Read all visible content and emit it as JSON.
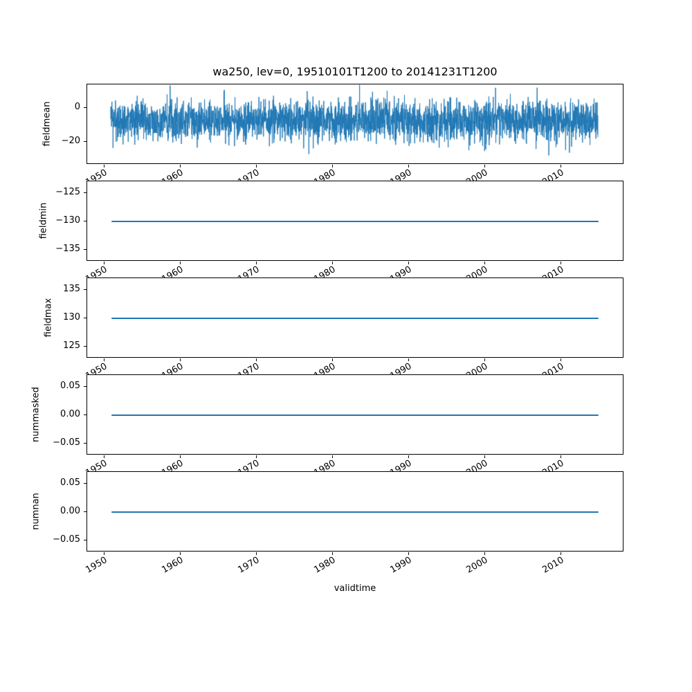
{
  "figure": {
    "title": "wa250, lev=0, 19510101T1200 to 20141231T1200",
    "xlabel": "validtime",
    "background": "#ffffff",
    "line_color": "#1f77b4",
    "axis_color": "#000000"
  },
  "xticks": {
    "years": [
      1950,
      1960,
      1970,
      1980,
      1990,
      2000,
      2010
    ],
    "labels": [
      "1950",
      "1960",
      "1970",
      "1980",
      "1990",
      "2000",
      "2010"
    ],
    "rotation_deg": 30
  },
  "x_domain": {
    "start": "19510101T1200",
    "end": "20141231T1200",
    "start_year": 1951.0,
    "end_year": 2015.0,
    "xlim_years": [
      1947.8,
      2018.2
    ]
  },
  "chart_data": [
    {
      "type": "line",
      "name": "fieldmean",
      "ylabel": "fieldmean",
      "ytick_labels": [
        "0",
        "−20"
      ],
      "ytick_values": [
        0,
        -20
      ],
      "ylim": [
        13.9,
        -33.5
      ],
      "series": {
        "kind": "noisy",
        "description": "dense noisy daily timeseries 1951-2015",
        "mean": -8,
        "sd": 6,
        "min": -30,
        "max": 13,
        "n": 3200,
        "seed": 42,
        "clip": [
          -30.5,
          13.2
        ]
      },
      "color": "#1f77b4"
    },
    {
      "type": "line",
      "name": "fieldmin",
      "ylabel": "fieldmin",
      "ytick_labels": [
        "−125",
        "−130",
        "−135"
      ],
      "ytick_values": [
        -125,
        -130,
        -135
      ],
      "ylim": [
        -122.93,
        -137.07
      ],
      "series": {
        "kind": "constant",
        "value": -130
      },
      "color": "#1f77b4"
    },
    {
      "type": "line",
      "name": "fieldmax",
      "ylabel": "fieldmax",
      "ytick_labels": [
        "135",
        "130",
        "125"
      ],
      "ytick_values": [
        135,
        130,
        125
      ],
      "ylim": [
        137.07,
        122.93
      ],
      "series": {
        "kind": "constant",
        "value": 130
      },
      "color": "#1f77b4"
    },
    {
      "type": "line",
      "name": "nummasked",
      "ylabel": "nummasked",
      "ytick_labels": [
        "0.05",
        "0.00",
        "−0.05"
      ],
      "ytick_values": [
        0.05,
        0.0,
        -0.05
      ],
      "ylim": [
        0.0707,
        -0.0707
      ],
      "series": {
        "kind": "constant",
        "value": 0.0
      },
      "color": "#1f77b4"
    },
    {
      "type": "line",
      "name": "numnan",
      "ylabel": "numnan",
      "ytick_labels": [
        "0.05",
        "0.00",
        "−0.05"
      ],
      "ytick_values": [
        0.05,
        0.0,
        -0.05
      ],
      "ylim": [
        0.0707,
        -0.0707
      ],
      "series": {
        "kind": "constant",
        "value": 0.0
      },
      "color": "#1f77b4"
    }
  ]
}
